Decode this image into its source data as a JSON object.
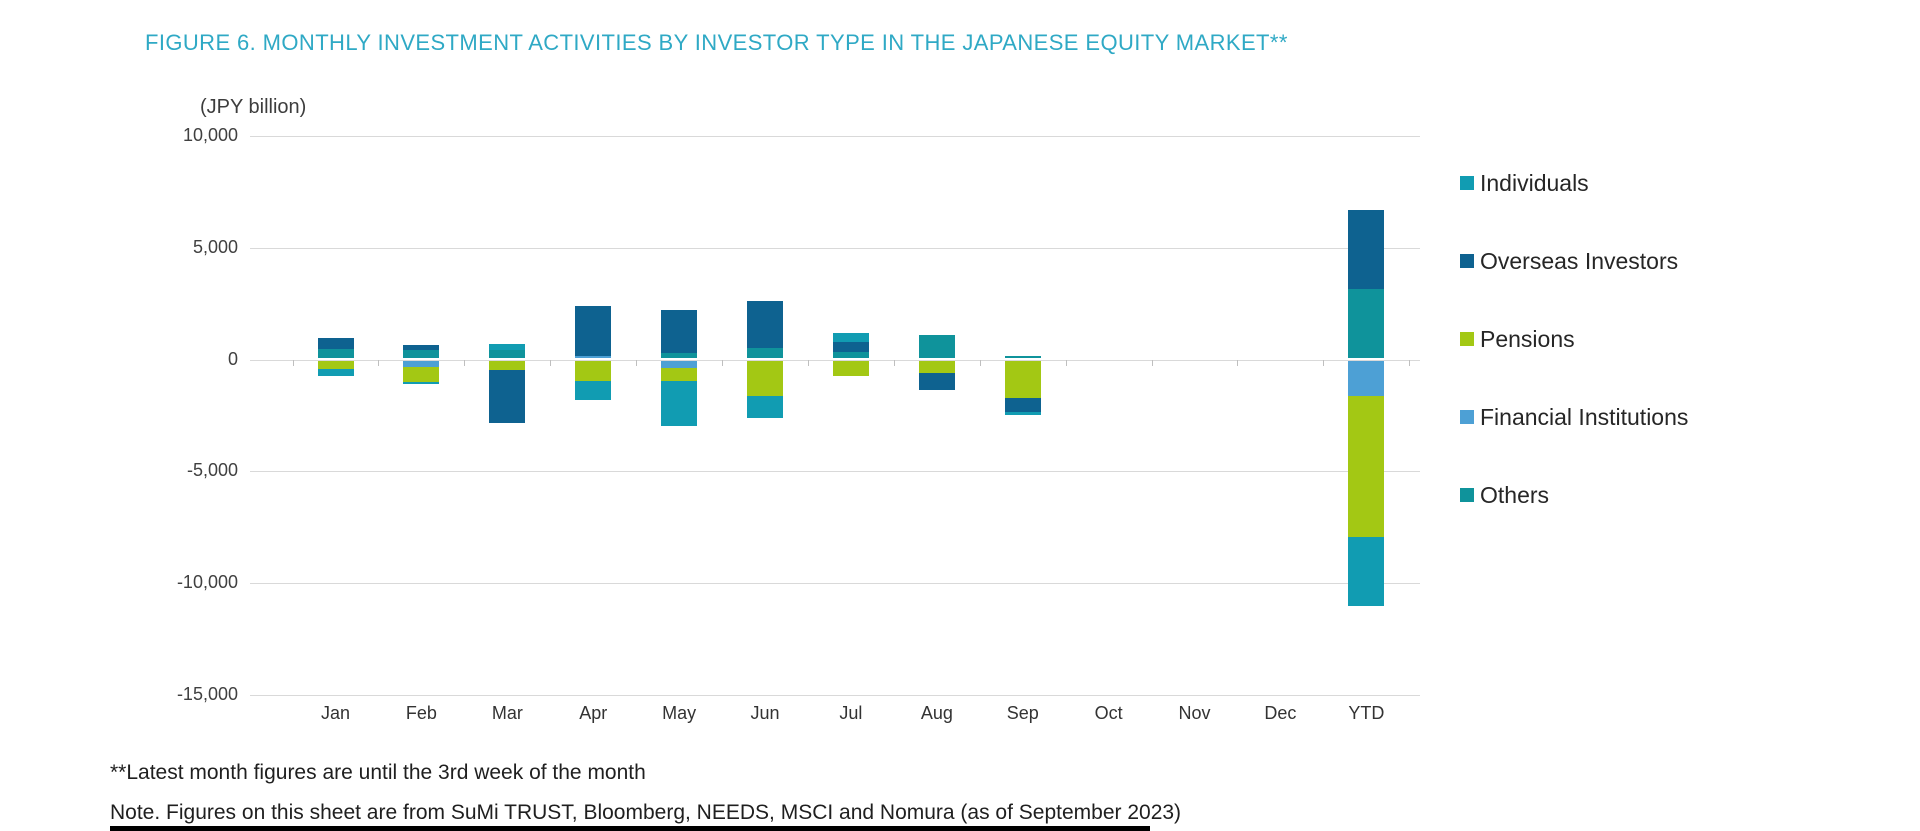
{
  "title": "FIGURE 6. MONTHLY INVESTMENT ACTIVITIES BY INVESTOR TYPE IN THE JAPANESE EQUITY MARKET**",
  "axis_unit_label": "(JPY billion)",
  "footnotes": {
    "line1": "**Latest month figures are until the 3rd week of the month",
    "line2": "Note. Figures on this sheet are from SuMi TRUST, Bloomberg, NEEDS, MSCI and Nomura (as of September 2023)"
  },
  "colors": {
    "title": "#2FA9C5",
    "axis_text": "#404040",
    "gridline": "#D9D9D9",
    "zero_tick": "#BFBFBF",
    "footnote_text": "#1F1F1F",
    "bottom_rule": "#000000"
  },
  "chart_data": {
    "type": "bar",
    "stacked": true,
    "title": "FIGURE 6. MONTHLY INVESTMENT ACTIVITIES BY INVESTOR TYPE IN THE JAPANESE EQUITY MARKET**",
    "ylabel": "(JPY billion)",
    "ylim": [
      -15000,
      10000
    ],
    "ytick_step": 5000,
    "grid": "horizontal",
    "legend_position": "right",
    "categories": [
      "Jan",
      "Feb",
      "Mar",
      "Apr",
      "May",
      "Jun",
      "Jul",
      "Aug",
      "Sep",
      "Oct",
      "Nov",
      "Dec",
      "YTD"
    ],
    "yticks": [
      {
        "value": 10000,
        "label": "10,000"
      },
      {
        "value": 5000,
        "label": "5,000"
      },
      {
        "value": 0,
        "label": "0"
      },
      {
        "value": -5000,
        "label": "-5,000"
      },
      {
        "value": -10000,
        "label": "-10,000"
      },
      {
        "value": -15000,
        "label": "-15,000"
      }
    ],
    "series": [
      {
        "name": "Individuals",
        "color": "#119CB2",
        "values": [
          -300,
          -90,
          300,
          -850,
          -2000,
          -1000,
          400,
          0,
          -150,
          0,
          0,
          0,
          -3050
        ]
      },
      {
        "name": "Overseas Investors",
        "color": "#0E6290",
        "values": [
          475,
          240,
          -2340,
          2200,
          1900,
          2080,
          450,
          -750,
          -640,
          0,
          0,
          0,
          3500
        ]
      },
      {
        "name": "Pensions",
        "color": "#A3C814",
        "values": [
          -360,
          -700,
          -420,
          -900,
          -570,
          -1550,
          -650,
          -550,
          -1640,
          0,
          0,
          0,
          -6330
        ]
      },
      {
        "name": "Financial Institutions",
        "color": "#4DA0D5",
        "values": [
          0,
          -250,
          0,
          130,
          -330,
          0,
          0,
          0,
          0,
          0,
          0,
          0,
          -1560
        ]
      },
      {
        "name": "Others",
        "color": "#0F939B",
        "values": [
          420,
          360,
          360,
          0,
          250,
          480,
          300,
          1050,
          100,
          0,
          0,
          0,
          3130
        ]
      }
    ],
    "stack_order": [
      "Others",
      "Financial Institutions",
      "Pensions",
      "Overseas Investors",
      "Individuals"
    ]
  }
}
